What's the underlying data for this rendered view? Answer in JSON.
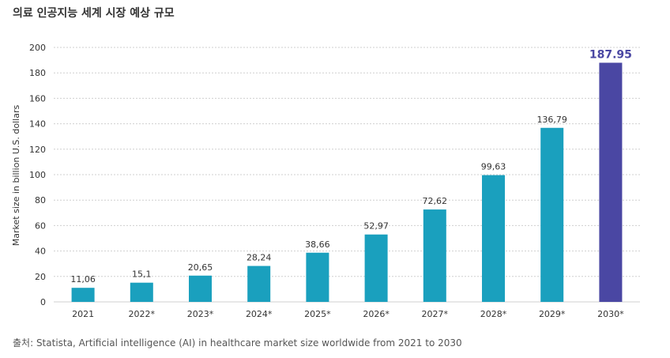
{
  "title": "의료 인공지능 세계 시장 예상 규모",
  "source": "출처: Statista, Artificial intelligence (AI) in healthcare market size worldwide from 2021 to 2030",
  "chart_data": {
    "type": "bar",
    "ylabel": "Market size in billion U.S. dollars",
    "ylim": [
      0,
      200
    ],
    "yticks": [
      0,
      20,
      40,
      60,
      80,
      100,
      120,
      140,
      160,
      180,
      200
    ],
    "grid": true,
    "categories": [
      "2021",
      "2022*",
      "2023*",
      "2024*",
      "2025*",
      "2026*",
      "2027*",
      "2028*",
      "2029*",
      "2030*"
    ],
    "values": [
      11.06,
      15.1,
      20.65,
      28.24,
      38.66,
      52.97,
      72.62,
      99.63,
      136.79,
      187.95
    ],
    "value_labels": [
      "11,06",
      "15,1",
      "20,65",
      "28,24",
      "38,66",
      "52,97",
      "72,62",
      "99,63",
      "136,79",
      "187.95"
    ],
    "highlight_index": 9,
    "colors": {
      "bar": "#1aa0be",
      "highlight_bar": "#4a47a3",
      "highlight_label": "#4a47a3",
      "grid": "#cfcfcf"
    }
  }
}
